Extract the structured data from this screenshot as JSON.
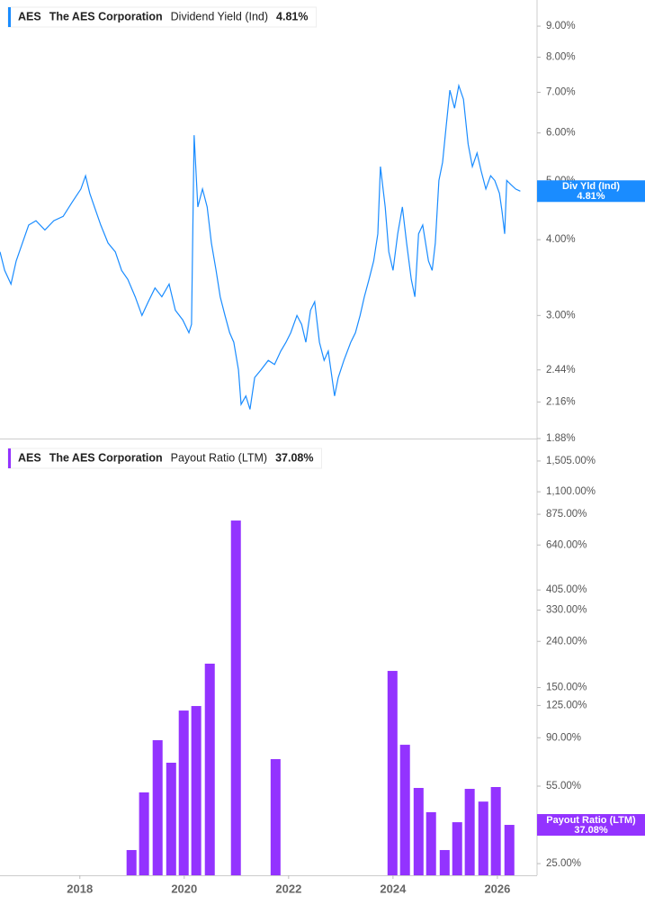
{
  "chart_data": [
    {
      "type": "line",
      "ticker": "AES",
      "company": "The AES Corporation",
      "log_y": true,
      "xlim": [
        2016.47,
        2026.76
      ],
      "ylim": [
        1.88,
        9.94
      ],
      "yticks": [
        {
          "value": 9,
          "label": "9.00%"
        },
        {
          "value": 8,
          "label": "8.00%"
        },
        {
          "value": 7,
          "label": "7.00%"
        },
        {
          "value": 6,
          "label": "6.00%"
        },
        {
          "value": 5,
          "label": "5.00%"
        },
        {
          "value": 4,
          "label": "4.00%"
        },
        {
          "value": 3,
          "label": "3.00%"
        },
        {
          "value": 2.44,
          "label": "2.44%"
        },
        {
          "value": 2.16,
          "label": "2.16%"
        },
        {
          "value": 1.88,
          "label": "1.88%"
        }
      ],
      "series": [
        {
          "name": "Dividend Yield (Ind)",
          "badge": "Div Yld (Ind)",
          "last_label": "4.81%",
          "color": "#1a8cff",
          "x": [
            2016.47,
            2016.56,
            2016.68,
            2016.78,
            2016.9,
            2017.02,
            2017.16,
            2017.33,
            2017.5,
            2017.68,
            2017.85,
            2018.02,
            2018.11,
            2018.19,
            2018.28,
            2018.4,
            2018.54,
            2018.68,
            2018.8,
            2018.92,
            2019.06,
            2019.19,
            2019.31,
            2019.44,
            2019.57,
            2019.71,
            2019.83,
            2019.97,
            2020.09,
            2020.14,
            2020.19,
            2020.26,
            2020.35,
            2020.44,
            2020.52,
            2020.61,
            2020.69,
            2020.78,
            2020.87,
            2020.95,
            2021.04,
            2021.09,
            2021.18,
            2021.26,
            2021.35,
            2021.47,
            2021.61,
            2021.73,
            2021.85,
            2021.95,
            2022.04,
            2022.16,
            2022.25,
            2022.33,
            2022.42,
            2022.5,
            2022.59,
            2022.68,
            2022.76,
            2022.88,
            2022.95,
            2023.06,
            2023.19,
            2023.28,
            2023.37,
            2023.45,
            2023.54,
            2023.63,
            2023.71,
            2023.76,
            2023.85,
            2023.92,
            2024.0,
            2024.09,
            2024.18,
            2024.26,
            2024.35,
            2024.42,
            2024.49,
            2024.57,
            2024.68,
            2024.75,
            2024.81,
            2024.88,
            2024.95,
            2025.02,
            2025.09,
            2025.18,
            2025.26,
            2025.35,
            2025.44,
            2025.52,
            2025.61,
            2025.69,
            2025.78,
            2025.87,
            2025.95,
            2026.04,
            2026.09,
            2026.14,
            2026.18,
            2026.26,
            2026.35,
            2026.44
          ],
          "values": [
            3.82,
            3.56,
            3.38,
            3.69,
            3.95,
            4.23,
            4.3,
            4.15,
            4.3,
            4.37,
            4.61,
            4.85,
            5.1,
            4.77,
            4.53,
            4.23,
            3.95,
            3.82,
            3.56,
            3.44,
            3.22,
            3.0,
            3.16,
            3.33,
            3.22,
            3.38,
            3.06,
            2.95,
            2.81,
            2.9,
            5.95,
            4.53,
            4.85,
            4.53,
            3.95,
            3.56,
            3.22,
            3.0,
            2.81,
            2.71,
            2.44,
            2.14,
            2.21,
            2.1,
            2.37,
            2.44,
            2.53,
            2.49,
            2.62,
            2.71,
            2.81,
            3.0,
            2.9,
            2.71,
            3.06,
            3.16,
            2.71,
            2.53,
            2.62,
            2.21,
            2.37,
            2.53,
            2.71,
            2.81,
            3.0,
            3.22,
            3.44,
            3.69,
            4.09,
            5.28,
            4.53,
            3.82,
            3.56,
            4.09,
            4.53,
            3.95,
            3.44,
            3.22,
            4.09,
            4.23,
            3.69,
            3.56,
            3.95,
            5.01,
            5.37,
            6.16,
            7.06,
            6.59,
            7.18,
            6.82,
            5.75,
            5.28,
            5.56,
            5.19,
            4.85,
            5.1,
            5.01,
            4.77,
            4.45,
            4.09,
            5.01,
            4.93,
            4.85,
            4.81
          ]
        }
      ]
    },
    {
      "type": "bar",
      "ticker": "AES",
      "company": "The AES Corporation",
      "log_y": true,
      "xlim": [
        2016.47,
        2026.76
      ],
      "ylim": [
        22.2,
        1840
      ],
      "xticks": [
        2018,
        2020,
        2022,
        2024,
        2026
      ],
      "yticks": [
        {
          "value": 1505,
          "label": "1,505.00%"
        },
        {
          "value": 1100,
          "label": "1,100.00%"
        },
        {
          "value": 875,
          "label": "875.00%"
        },
        {
          "value": 640,
          "label": "640.00%"
        },
        {
          "value": 405,
          "label": "405.00%"
        },
        {
          "value": 330,
          "label": "330.00%"
        },
        {
          "value": 240,
          "label": "240.00%"
        },
        {
          "value": 150,
          "label": "150.00%"
        },
        {
          "value": 125,
          "label": "125.00%"
        },
        {
          "value": 90,
          "label": "90.00%"
        },
        {
          "value": 55,
          "label": "55.00%"
        },
        {
          "value": 25,
          "label": "25.00%"
        }
      ],
      "series": [
        {
          "name": "Payout Ratio (LTM)",
          "badge": "Payout Ratio (LTM)",
          "last_label": "37.08%",
          "color": "#9333ff",
          "x": [
            2018.99,
            2019.23,
            2019.49,
            2019.75,
            2019.99,
            2020.23,
            2020.49,
            2020.99,
            2021.75,
            2023.99,
            2024.23,
            2024.49,
            2024.73,
            2024.99,
            2025.23,
            2025.47,
            2025.73,
            2025.97,
            2026.23
          ],
          "values": [
            28.7,
            51.6,
            87.8,
            69.8,
            118.7,
            124.3,
            191.3,
            821,
            72.4,
            177.7,
            83.8,
            54.0,
            42.2,
            28.7,
            38.1,
            53.5,
            47.0,
            54.5,
            37.08
          ]
        }
      ]
    }
  ]
}
